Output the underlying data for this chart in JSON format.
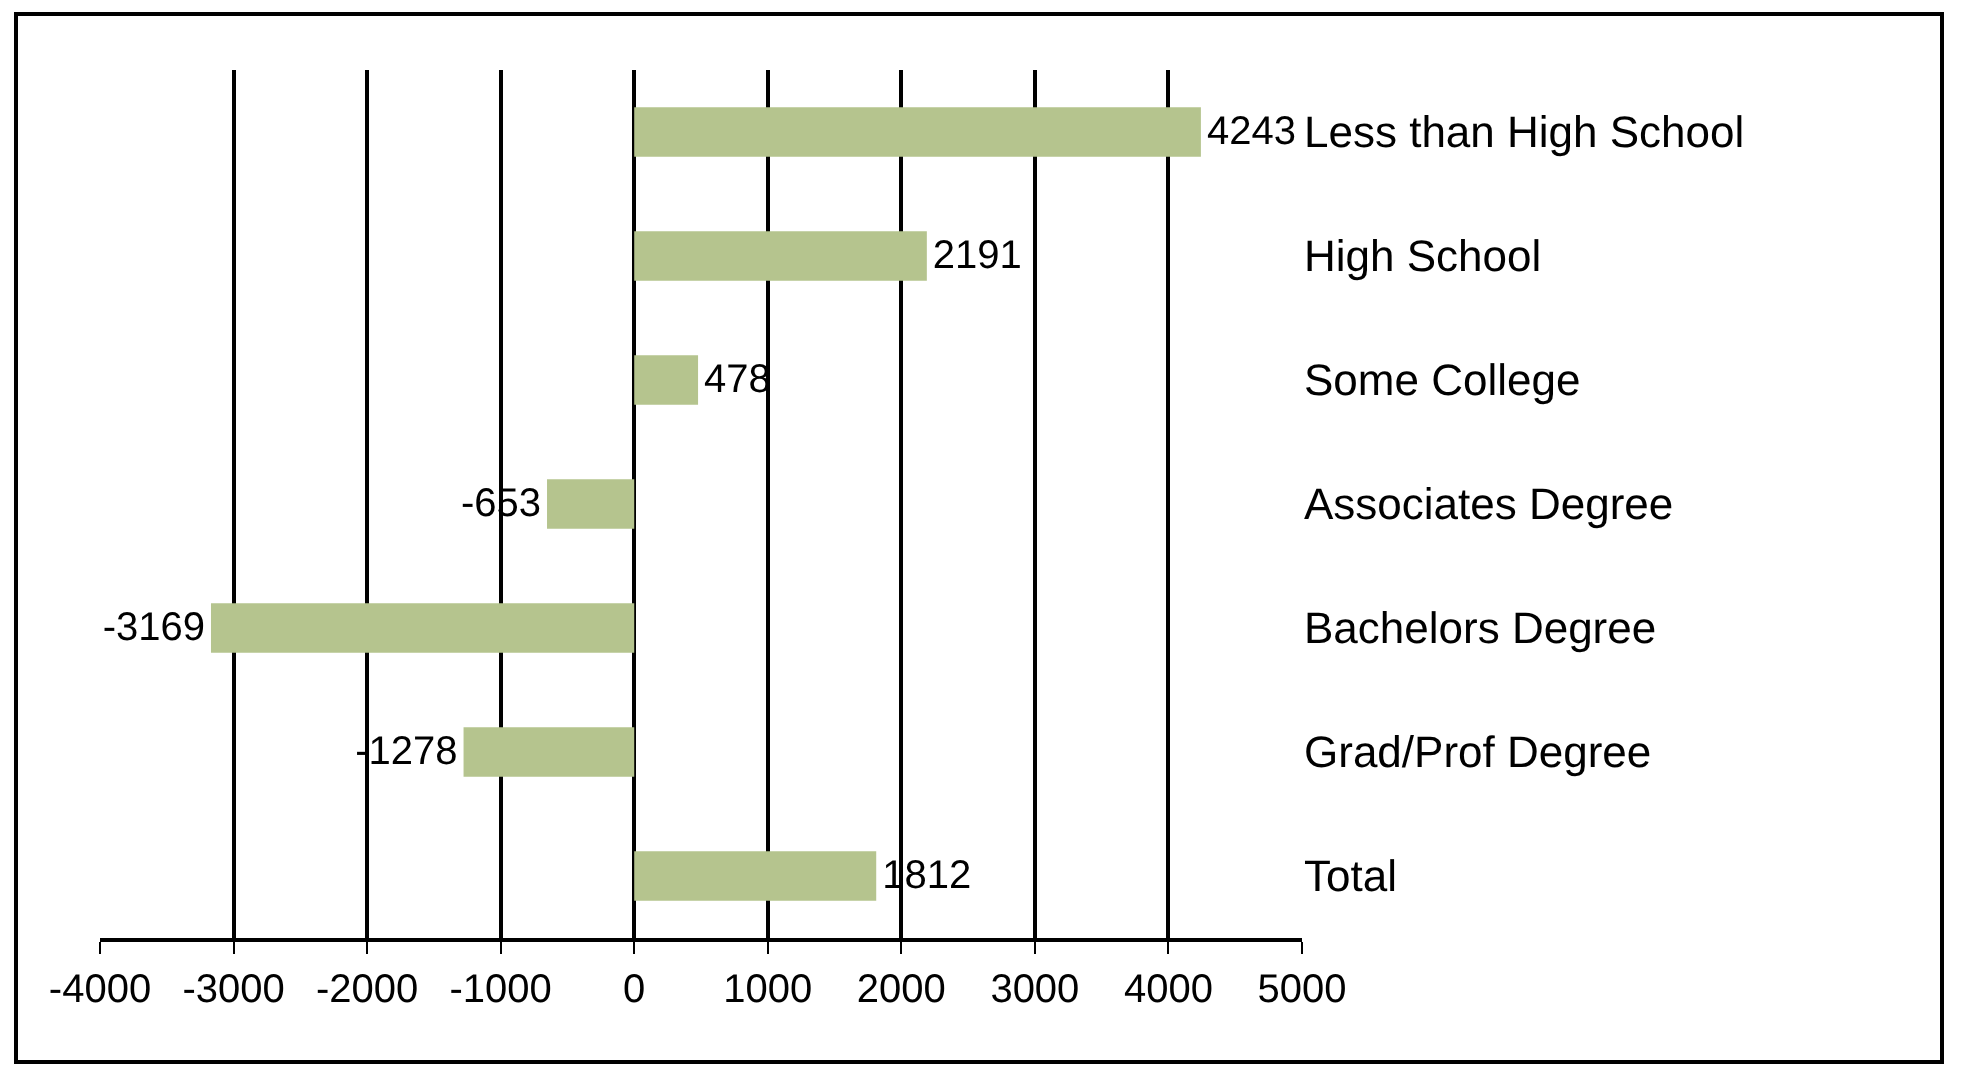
{
  "chart_data": {
    "type": "bar",
    "orientation": "horizontal",
    "categories": [
      "Less than High School",
      "High School",
      "Some College",
      "Associates Degree",
      "Bachelors Degree",
      "Grad/Prof Degree",
      "Total"
    ],
    "values": [
      4243,
      2191,
      478,
      -653,
      -3169,
      -1278,
      1812
    ],
    "color": "#b5c48e",
    "xlim": [
      -4000,
      5000
    ],
    "xticks": [
      -4000,
      -3000,
      -2000,
      -1000,
      0,
      1000,
      2000,
      3000,
      4000,
      5000
    ],
    "grid": "x",
    "data_labels": true
  }
}
